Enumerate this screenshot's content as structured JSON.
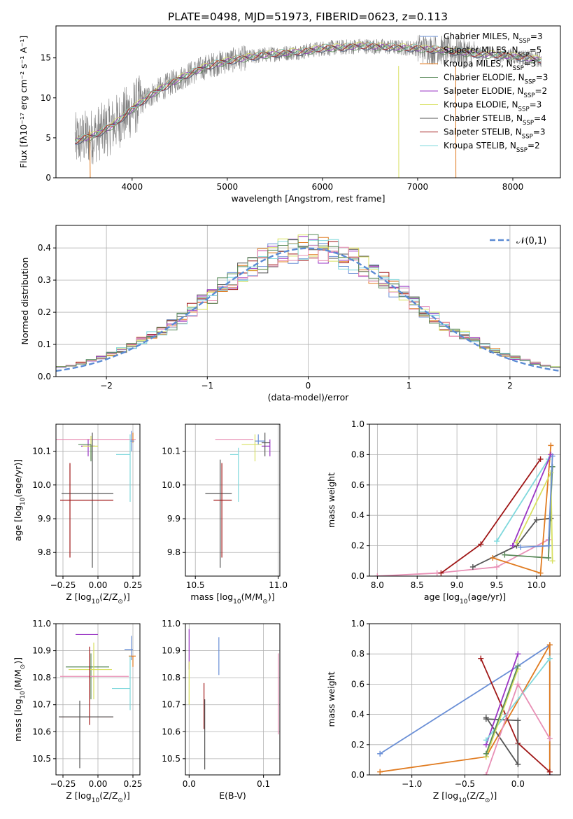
{
  "chart_data": [
    {
      "id": "spectrum",
      "type": "line",
      "title": "PLATE=0498, MJD=51973, FIBERID=0623, z=0.113",
      "xlabel": "wavelength [Angstrom, rest frame]",
      "ylabel": "Flux [fλ10⁻¹⁷ erg cm⁻² s⁻¹ A⁻¹]",
      "xlim": [
        3200,
        8500
      ],
      "ylim": [
        0,
        19
      ],
      "xticks": [
        4000,
        5000,
        6000,
        7000,
        8000
      ],
      "yticks": [
        0,
        5,
        10,
        15
      ],
      "grid": false,
      "legend_position": "right",
      "data_color": "#808080",
      "data_curve": {
        "x": [
          3400,
          3600,
          3800,
          4000,
          4200,
          4400,
          4600,
          4800,
          5000,
          5200,
          5400,
          5600,
          5800,
          6000,
          6200,
          6400,
          6600,
          6800,
          7000,
          7200,
          7400,
          7600,
          7800,
          8000,
          8200,
          8300
        ],
        "y": [
          4.6,
          5.3,
          6.6,
          8.6,
          10.4,
          11.8,
          13.0,
          14.0,
          14.6,
          15.0,
          15.4,
          15.6,
          15.8,
          16.2,
          16.3,
          16.5,
          16.4,
          16.3,
          16.2,
          16.0,
          15.8,
          15.5,
          15.4,
          15.2,
          14.9,
          14.7
        ]
      },
      "series": [
        {
          "name": "Chabrier MILES, N$_{SSP}$=3",
          "color": "#6a8fd6"
        },
        {
          "name": "Salpeter MILES, N$_{SSP}$=5",
          "color": "#b8b8b8"
        },
        {
          "name": "Kroupa MILES, N$_{SSP}$=3",
          "color": "#e07b20"
        },
        {
          "name": "Chabrier ELODIE, N$_{SSP}$=3",
          "color": "#5a8a5a"
        },
        {
          "name": "Salpeter ELODIE, N$_{SSP}$=2",
          "color": "#9a35c4"
        },
        {
          "name": "Kroupa ELODIE, N$_{SSP}$=3",
          "color": "#d8e060"
        },
        {
          "name": "Chabrier STELIB, N$_{SSP}$=4",
          "color": "#555555"
        },
        {
          "name": "Salpeter STELIB, N$_{SSP}$=3",
          "color": "#a01818"
        },
        {
          "name": "Kroupa STELIB, N$_{SSP}$=2",
          "color": "#7fd8dc"
        }
      ]
    },
    {
      "id": "residuals",
      "type": "histogram",
      "xlabel": "(data-model)/error",
      "ylabel": "Normed distribution",
      "xlim": [
        -2.5,
        2.5
      ],
      "ylim": [
        0,
        0.47
      ],
      "xticks": [
        -2,
        -1,
        0,
        1,
        2
      ],
      "yticks": [
        0.0,
        0.1,
        0.2,
        0.3,
        0.4
      ],
      "grid": true,
      "legend_position": "top-right",
      "reference_curve": {
        "name": "$\\mathcal{N}(0,1)$",
        "color": "#5b8bd4",
        "style": "dashed"
      },
      "series_colors": [
        "#6a8fd6",
        "#e07b20",
        "#a01818",
        "#555555",
        "#9a35c4",
        "#d8e060",
        "#7fd8dc",
        "#e88fb5",
        "#5a8a5a"
      ]
    },
    {
      "id": "age-vs-Z",
      "type": "errorbar",
      "xlabel": "Z [log$_{10}$(Z/Z$_\\odot$)]",
      "ylabel": "age  [log$_{10}$(age/yr)]",
      "xlim": [
        -0.3,
        0.3
      ],
      "ylim": [
        9.73,
        10.18
      ],
      "xticks": [
        -0.25,
        0.0,
        0.25
      ],
      "yticks": [
        9.8,
        9.9,
        10.0,
        10.1
      ],
      "grid": true,
      "points": [
        {
          "x": -0.05,
          "y": 10.135,
          "xerr": [
            0.27,
            0.32
          ],
          "yerr": [
            0.0,
            0.0
          ],
          "color": "#e88fb5"
        },
        {
          "x": 0.25,
          "y": 10.135,
          "xerr": [
            0.0,
            0.0
          ],
          "yerr": [
            0.01,
            0.02
          ],
          "color": "#e07b20"
        },
        {
          "x": -0.07,
          "y": 10.115,
          "xerr": [
            0.05,
            0.05
          ],
          "yerr": [
            0.03,
            0.02
          ],
          "color": "#9a35c4"
        },
        {
          "x": -0.05,
          "y": 10.115,
          "xerr": [
            0.06,
            0.05
          ],
          "yerr": [
            0.04,
            0.03
          ],
          "color": "#d8e060"
        },
        {
          "x": 0.24,
          "y": 10.13,
          "xerr": [
            0.01,
            0.02
          ],
          "yerr": [
            0.03,
            0.03
          ],
          "color": "#6a8fd6"
        },
        {
          "x": 0.23,
          "y": 10.09,
          "xerr": [
            0.1,
            0.0
          ],
          "yerr": [
            0.14,
            0.06
          ],
          "color": "#7fd8dc"
        },
        {
          "x": -0.05,
          "y": 10.12,
          "xerr": [
            0.09,
            0.0
          ],
          "yerr": [
            0.05,
            0.0
          ],
          "color": "#5a8a5a"
        },
        {
          "x": -0.04,
          "y": 9.975,
          "xerr": [
            0.22,
            0.15
          ],
          "yerr": [
            0.22,
            0.18
          ],
          "color": "#555555"
        },
        {
          "x": -0.2,
          "y": 9.955,
          "xerr": [
            0.07,
            0.31
          ],
          "yerr": [
            0.17,
            0.11
          ],
          "color": "#a01818"
        }
      ]
    },
    {
      "id": "age-vs-mass",
      "type": "errorbar",
      "xlabel": "mass [log$_{10}$(M/M$_\\odot$)]",
      "xlim": [
        10.44,
        11.01
      ],
      "ylim": [
        9.73,
        10.18
      ],
      "xticks": [
        10.5,
        11.0
      ],
      "yticks": [
        9.8,
        9.9,
        10.0,
        10.1
      ],
      "grid": true,
      "points": [
        {
          "x": 10.8,
          "y": 10.135,
          "xerr": [
            0.18,
            0.05
          ],
          "yerr": [
            0.0,
            0.0
          ],
          "color": "#e88fb5"
        },
        {
          "x": 10.86,
          "y": 10.12,
          "xerr": [
            0.08,
            0.04
          ],
          "yerr": [
            0.05,
            0.03
          ],
          "color": "#d8e060"
        },
        {
          "x": 10.95,
          "y": 10.115,
          "xerr": [
            0.05,
            0.0
          ],
          "yerr": [
            0.03,
            0.02
          ],
          "color": "#9a35c4"
        },
        {
          "x": 10.92,
          "y": 10.125,
          "xerr": [
            0.02,
            0.03
          ],
          "yerr": [
            0.04,
            0.03
          ],
          "color": "#555555"
        },
        {
          "x": 10.88,
          "y": 10.13,
          "xerr": [
            0.02,
            0.04
          ],
          "yerr": [
            0.01,
            0.02
          ],
          "color": "#6a8fd6"
        },
        {
          "x": 10.76,
          "y": 10.09,
          "xerr": [
            0.05,
            0.0
          ],
          "yerr": [
            0.14,
            0.02
          ],
          "color": "#7fd8dc"
        },
        {
          "x": 10.65,
          "y": 9.975,
          "xerr": [
            0.09,
            0.07
          ],
          "yerr": [
            0.22,
            0.1
          ],
          "color": "#555555"
        },
        {
          "x": 10.66,
          "y": 9.955,
          "xerr": [
            0.05,
            0.06
          ],
          "yerr": [
            0.17,
            0.11
          ],
          "color": "#a01818"
        }
      ]
    },
    {
      "id": "mass-weight-vs-age",
      "type": "line",
      "xlabel": "age  [log$_{10}$(age/yr)]",
      "ylabel": "mass weight",
      "xlim": [
        7.9,
        10.3
      ],
      "ylim": [
        0,
        1
      ],
      "xticks": [
        8.0,
        8.5,
        9.0,
        9.5,
        10.0
      ],
      "yticks": [
        0.0,
        0.2,
        0.4,
        0.6,
        0.8,
        1.0
      ],
      "grid": true,
      "series": [
        {
          "color": "#e88fb5",
          "x": [
            8.0,
            8.75,
            9.5,
            10.15
          ],
          "y": [
            0.0,
            0.02,
            0.06,
            0.24
          ]
        },
        {
          "color": "#a01818",
          "x": [
            8.8,
            9.3,
            10.05
          ],
          "y": [
            0.02,
            0.21,
            0.77
          ]
        },
        {
          "color": "#555555",
          "x": [
            9.2,
            9.75,
            10.0,
            10.18
          ],
          "y": [
            0.06,
            0.2,
            0.37,
            0.38
          ]
        },
        {
          "color": "#5a8a5a",
          "x": [
            9.6,
            10.15,
            10.2
          ],
          "y": [
            0.14,
            0.12,
            0.72
          ]
        },
        {
          "color": "#e07b20",
          "x": [
            9.45,
            10.05,
            10.18
          ],
          "y": [
            0.12,
            0.02,
            0.86
          ]
        },
        {
          "color": "#7fd8dc",
          "x": [
            9.5,
            10.15
          ],
          "y": [
            0.23,
            0.77
          ]
        },
        {
          "color": "#9a35c4",
          "x": [
            9.7,
            10.18
          ],
          "y": [
            0.2,
            0.8
          ]
        },
        {
          "color": "#d8e060",
          "x": [
            9.75,
            10.18,
            10.2
          ],
          "y": [
            0.22,
            0.68,
            0.1
          ]
        },
        {
          "color": "#6a8fd6",
          "x": [
            9.8,
            10.15,
            10.2
          ],
          "y": [
            0.19,
            0.2,
            0.79
          ]
        }
      ]
    },
    {
      "id": "mass-vs-Z",
      "type": "errorbar",
      "xlabel": "Z [log$_{10}$(Z/Z$_\\odot$)]",
      "ylabel": "mass [log$_{10}$(M/M$_\\odot$)]",
      "xlim": [
        -0.3,
        0.3
      ],
      "ylim": [
        10.44,
        11.0
      ],
      "xticks": [
        -0.25,
        0.0,
        0.25
      ],
      "yticks": [
        10.5,
        10.6,
        10.7,
        10.8,
        10.9,
        11.0
      ],
      "grid": true,
      "points": [
        {
          "x": -0.07,
          "y": 10.96,
          "xerr": [
            0.09,
            0.07
          ],
          "yerr": [
            0.0,
            0.0
          ],
          "color": "#9a35c4"
        },
        {
          "x": 0.24,
          "y": 10.905,
          "xerr": [
            0.05,
            0.01
          ],
          "yerr": [
            0.04,
            0.05
          ],
          "color": "#6a8fd6"
        },
        {
          "x": 0.25,
          "y": 10.88,
          "xerr": [
            0.03,
            0.02
          ],
          "yerr": [
            0.04,
            0.0
          ],
          "color": "#e07b20"
        },
        {
          "x": -0.05,
          "y": 10.84,
          "xerr": [
            0.18,
            0.13
          ],
          "yerr": [
            0.12,
            0.05
          ],
          "color": "#5a8a5a"
        },
        {
          "x": -0.03,
          "y": 10.83,
          "xerr": [
            0.18,
            0.13
          ],
          "yerr": [
            0.11,
            0.1
          ],
          "color": "#d8e060"
        },
        {
          "x": -0.05,
          "y": 10.805,
          "xerr": [
            0.22,
            0.27
          ],
          "yerr": [
            0.0,
            0.0
          ],
          "color": "#e88fb5"
        },
        {
          "x": 0.23,
          "y": 10.76,
          "xerr": [
            0.13,
            0.0
          ],
          "yerr": [
            0.08,
            0.12
          ],
          "color": "#7fd8dc"
        },
        {
          "x": -0.06,
          "y": 10.655,
          "xerr": [
            0.21,
            0.17
          ],
          "yerr": [
            0.03,
            0.26
          ],
          "color": "#a01818"
        },
        {
          "x": -0.13,
          "y": 10.655,
          "xerr": [
            0.15,
            0.24
          ],
          "yerr": [
            0.19,
            0.06
          ],
          "color": "#555555"
        }
      ]
    },
    {
      "id": "mass-vs-EBV",
      "type": "errorbar",
      "xlabel": "E(B-V)",
      "xlim": [
        -0.005,
        0.122
      ],
      "ylim": [
        10.44,
        11.0
      ],
      "xticks": [
        0.0,
        0.1
      ],
      "yticks": [
        10.5,
        10.6,
        10.7,
        10.8,
        10.9,
        11.0
      ],
      "grid": true,
      "points": [
        {
          "x": 0.0,
          "y": 10.9,
          "xerr": [
            0.0,
            0.0
          ],
          "yerr": [
            0.07,
            0.08
          ],
          "color": "#9a35c4"
        },
        {
          "x": 0.0,
          "y": 10.79,
          "xerr": [
            0.0,
            0.0
          ],
          "yerr": [
            0.09,
            0.07
          ],
          "color": "#d8e060"
        },
        {
          "x": 0.04,
          "y": 10.88,
          "xerr": [
            0.0,
            0.0
          ],
          "yerr": [
            0.07,
            0.07
          ],
          "color": "#6a8fd6"
        },
        {
          "x": 0.12,
          "y": 10.74,
          "xerr": [
            0.0,
            0.0
          ],
          "yerr": [
            0.15,
            0.15
          ],
          "color": "#e88fb5"
        },
        {
          "x": 0.02,
          "y": 10.66,
          "xerr": [
            0.0,
            0.0
          ],
          "yerr": [
            0.05,
            0.12
          ],
          "color": "#a01818"
        },
        {
          "x": 0.021,
          "y": 10.6,
          "xerr": [
            0.0,
            0.0
          ],
          "yerr": [
            0.14,
            0.12
          ],
          "color": "#555555"
        }
      ]
    },
    {
      "id": "mass-weight-vs-Z",
      "type": "line",
      "xlabel": "Z [log$_{10}$(Z/Z$_\\odot$)]",
      "ylabel": "mass weight",
      "xlim": [
        -1.4,
        0.4
      ],
      "ylim": [
        0,
        1
      ],
      "xticks": [
        -1.0,
        -0.5,
        0.0
      ],
      "yticks": [
        0.0,
        0.2,
        0.4,
        0.6,
        0.8,
        1.0
      ],
      "grid": true,
      "series": [
        {
          "color": "#6a8fd6",
          "x": [
            -1.3,
            0.0,
            0.3,
            0.3
          ],
          "y": [
            0.14,
            0.72,
            0.86,
            0.0
          ]
        },
        {
          "color": "#e07b20",
          "x": [
            -1.3,
            -0.3,
            0.3,
            0.3
          ],
          "y": [
            0.02,
            0.12,
            0.86,
            0.02
          ]
        },
        {
          "color": "#a01818",
          "x": [
            -0.35,
            0.0,
            0.3
          ],
          "y": [
            0.77,
            0.21,
            0.02
          ]
        },
        {
          "color": "#555555",
          "x": [
            -0.3,
            0.0,
            0.0,
            -0.3
          ],
          "y": [
            0.38,
            0.07,
            0.36,
            0.37
          ]
        },
        {
          "color": "#9a35c4",
          "x": [
            -0.3,
            0.0
          ],
          "y": [
            0.2,
            0.8
          ]
        },
        {
          "color": "#7fd8dc",
          "x": [
            -0.3,
            0.3
          ],
          "y": [
            0.23,
            0.77
          ]
        },
        {
          "color": "#d8e060",
          "x": [
            -0.3,
            0.0
          ],
          "y": [
            0.12,
            0.7
          ]
        },
        {
          "color": "#5a8a5a",
          "x": [
            -0.3,
            0.0
          ],
          "y": [
            0.14,
            0.72
          ]
        },
        {
          "color": "#e88fb5",
          "x": [
            -0.3,
            0.0,
            0.3
          ],
          "y": [
            0.0,
            0.6,
            0.24
          ]
        }
      ]
    }
  ]
}
